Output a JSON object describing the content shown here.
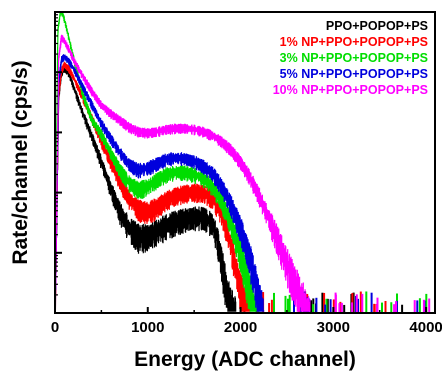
{
  "chart_data": {
    "type": "line",
    "xlabel": "Energy (ADC channel)",
    "ylabel": "Rate/channel (cps/s)",
    "xlim": [
      0,
      4096
    ],
    "x_ticks": [
      0,
      1000,
      2000,
      3000,
      4000
    ],
    "yscale": "log",
    "ylim_decades": [
      -2,
      3
    ],
    "y_tick_labels": false,
    "grid": false,
    "legend_position": "top-right",
    "series": [
      {
        "name": "PPO+POPOP+PS",
        "color": "#000000",
        "x": [
          0,
          40,
          70,
          100,
          150,
          200,
          300,
          400,
          500,
          600,
          700,
          800,
          900,
          1000,
          1100,
          1200,
          1300,
          1400,
          1500,
          1600,
          1700,
          1750,
          1800,
          1850,
          1900,
          1950
        ],
        "y": [
          0.01,
          40,
          100,
          120,
          100,
          60,
          22,
          9,
          3.5,
          1.3,
          0.55,
          0.3,
          0.22,
          0.22,
          0.27,
          0.33,
          0.38,
          0.42,
          0.45,
          0.45,
          0.35,
          0.2,
          0.08,
          0.03,
          0.015,
          0.01
        ]
      },
      {
        "name": "1% NP+PPO+POPOP+PS",
        "color": "#ff0000",
        "x": [
          0,
          40,
          70,
          100,
          150,
          200,
          300,
          400,
          500,
          600,
          700,
          800,
          900,
          1000,
          1100,
          1200,
          1300,
          1400,
          1500,
          1600,
          1700,
          1800,
          1850,
          1900,
          1950,
          2000,
          2050,
          2100
        ],
        "y": [
          0.01,
          45,
          110,
          140,
          120,
          85,
          40,
          18,
          7.5,
          3.5,
          1.7,
          0.9,
          0.6,
          0.55,
          0.65,
          0.85,
          1.0,
          1.1,
          1.15,
          1.1,
          0.9,
          0.5,
          0.3,
          0.15,
          0.07,
          0.03,
          0.015,
          0.01
        ]
      },
      {
        "name": "3% NP+PPO+POPOP+PS",
        "color": "#00dd00",
        "x": [
          0,
          30,
          60,
          90,
          120,
          200,
          300,
          400,
          500,
          600,
          700,
          800,
          900,
          1000,
          1100,
          1200,
          1300,
          1400,
          1500,
          1600,
          1700,
          1800,
          1900,
          2000,
          2050,
          2100,
          2150,
          2200
        ],
        "y": [
          0.01,
          500,
          1100,
          900,
          600,
          180,
          45,
          17,
          10,
          5,
          2.6,
          1.6,
          1.25,
          1.4,
          1.8,
          2.2,
          2.4,
          2.4,
          2.2,
          1.9,
          1.4,
          0.8,
          0.35,
          0.12,
          0.06,
          0.03,
          0.015,
          0.01
        ]
      },
      {
        "name": "5% NP+PPO+POPOP+PS",
        "color": "#0000dd",
        "x": [
          0,
          40,
          70,
          100,
          150,
          200,
          300,
          400,
          500,
          600,
          700,
          800,
          900,
          1000,
          1100,
          1200,
          1300,
          1400,
          1500,
          1600,
          1700,
          1800,
          1900,
          2000,
          2100,
          2150,
          2200,
          2250
        ],
        "y": [
          0.01,
          70,
          170,
          190,
          160,
          120,
          60,
          30,
          15,
          8.5,
          5,
          3.2,
          2.6,
          2.8,
          3.3,
          3.9,
          4.1,
          4.0,
          3.6,
          3.0,
          2.3,
          1.4,
          0.7,
          0.3,
          0.1,
          0.05,
          0.02,
          0.01
        ]
      },
      {
        "name": "10% NP+PPO+POPOP+PS",
        "color": "#ff00ff",
        "x": [
          0,
          40,
          70,
          100,
          150,
          200,
          300,
          400,
          500,
          600,
          700,
          800,
          900,
          1000,
          1100,
          1200,
          1300,
          1400,
          1500,
          1600,
          1700,
          1800,
          1900,
          2000,
          2100,
          2200,
          2300,
          2400,
          2500,
          2600,
          2700,
          2750
        ],
        "y": [
          0.01,
          180,
          400,
          350,
          250,
          170,
          90,
          50,
          30,
          22,
          17,
          13,
          11,
          10.5,
          11,
          12,
          12.5,
          12.5,
          12,
          11,
          9.5,
          7.5,
          5.5,
          3.5,
          2.0,
          1.0,
          0.45,
          0.2,
          0.08,
          0.035,
          0.015,
          0.01
        ]
      }
    ]
  }
}
